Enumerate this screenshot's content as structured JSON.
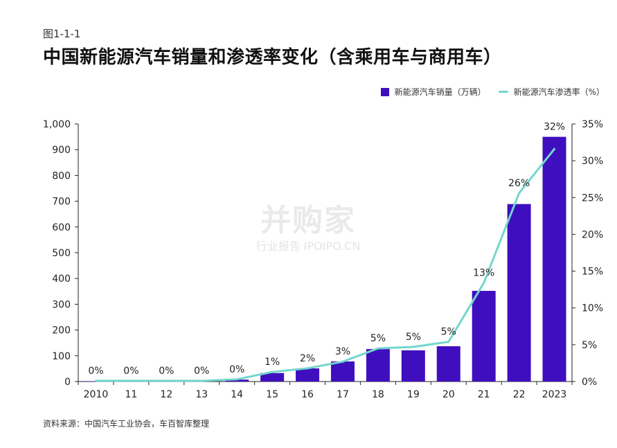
{
  "figure_label": "图1-1-1",
  "title": "中国新能源汽车销量和渗透率变化（含乘用车与商用车）",
  "legend": {
    "bar_label": "新能源汽车销量（万辆）",
    "line_label": "新能源汽车渗透率（%）"
  },
  "source": "资料来源：中国汽车工业协会，车百智库整理",
  "watermark": {
    "line1": "并购家",
    "line2": "行业报告 IPOIPO.CN"
  },
  "colors": {
    "bar": "#3f0fbf",
    "line": "#74d6cf",
    "axis": "#222222"
  },
  "chart_data": {
    "type": "bar",
    "categories": [
      "2010",
      "11",
      "12",
      "13",
      "14",
      "15",
      "16",
      "17",
      "18",
      "19",
      "20",
      "21",
      "22",
      "2023"
    ],
    "series": [
      {
        "name": "新能源汽车销量（万辆）",
        "type": "bar",
        "axis": "left",
        "values": [
          0.8,
          0.8,
          1.3,
          1.8,
          7.5,
          33,
          51,
          78,
          126,
          121,
          137,
          352,
          689,
          950
        ]
      },
      {
        "name": "新能源汽车渗透率（%）",
        "type": "line",
        "axis": "right",
        "values": [
          0.1,
          0.1,
          0.1,
          0.1,
          0.3,
          1.3,
          1.8,
          2.7,
          4.5,
          4.7,
          5.4,
          13.4,
          25.6,
          31.6
        ],
        "labels": [
          "0%",
          "0%",
          "0%",
          "0%",
          "0%",
          "1%",
          "2%",
          "3%",
          "5%",
          "5%",
          "5%",
          "13%",
          "26%",
          "32%"
        ]
      }
    ],
    "y_left": {
      "ylim": [
        0,
        1000
      ],
      "ticks": [
        "0",
        "100",
        "200",
        "300",
        "400",
        "500",
        "600",
        "700",
        "800",
        "900",
        "1,000"
      ]
    },
    "y_right": {
      "ylim": [
        0,
        35
      ],
      "ticks": [
        "0%",
        "5%",
        "10%",
        "15%",
        "20%",
        "25%",
        "30%",
        "35%"
      ]
    },
    "grid": false,
    "legend_position": "top-right"
  }
}
